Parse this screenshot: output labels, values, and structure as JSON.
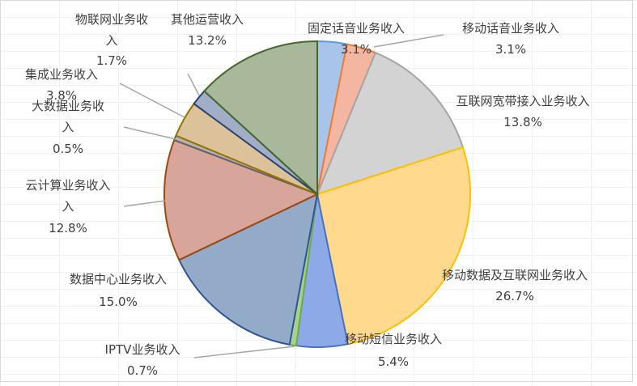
{
  "chart_data": {
    "type": "pie",
    "title": "",
    "legend": "none",
    "start_angle_deg": 0,
    "direction": "clockwise",
    "slices": [
      {
        "label": "固定话音业务收入",
        "value": 3.1,
        "value_label": "3.1%",
        "color": "#a9c4eb",
        "stroke": "#5b9bd5"
      },
      {
        "label": "移动话音业务收入",
        "value": 3.1,
        "value_label": "3.1%",
        "color": "#f4b6a0",
        "stroke": "#ed7d31"
      },
      {
        "label": "互联网宽带接入业务收入",
        "value": 13.8,
        "value_label": "13.8%",
        "color": "#d3d3d3",
        "stroke": "#a5a5a5"
      },
      {
        "label": "移动数据及互联网业务收入",
        "value": 26.7,
        "value_label": "26.7%",
        "color": "#ffd98e",
        "stroke": "#ffc000"
      },
      {
        "label": "移动短信业务收入",
        "value": 5.4,
        "value_label": "5.4%",
        "color": "#8ea9e8",
        "stroke": "#4472c4"
      },
      {
        "label": "IPTV业务收入",
        "value": 0.7,
        "value_label": "0.7%",
        "color": "#a9d18e",
        "stroke": "#70ad47"
      },
      {
        "label": "数据中心业务收入",
        "value": 15.0,
        "value_label": "15.0%",
        "color": "#94aac9",
        "stroke": "#2e5597"
      },
      {
        "label": "云计算业务收入",
        "value": 12.8,
        "value_label": "12.8%",
        "color": "#d8a59a",
        "stroke": "#9e480e"
      },
      {
        "label": "大数据业务收入",
        "value": 0.5,
        "value_label": "0.5%",
        "color": "#b4b4b4",
        "stroke": "#636363"
      },
      {
        "label": "集成业务收入",
        "value": 3.8,
        "value_label": "3.8%",
        "color": "#dcc29b",
        "stroke": "#997300"
      },
      {
        "label": "物联网业务收入",
        "value": 1.7,
        "value_label": "1.7%",
        "color": "#a3adc6",
        "stroke": "#264478"
      },
      {
        "label": "其他运营收入",
        "value": 13.2,
        "value_label": "13.2%",
        "color": "#a9b89a",
        "stroke": "#43682b"
      }
    ]
  }
}
